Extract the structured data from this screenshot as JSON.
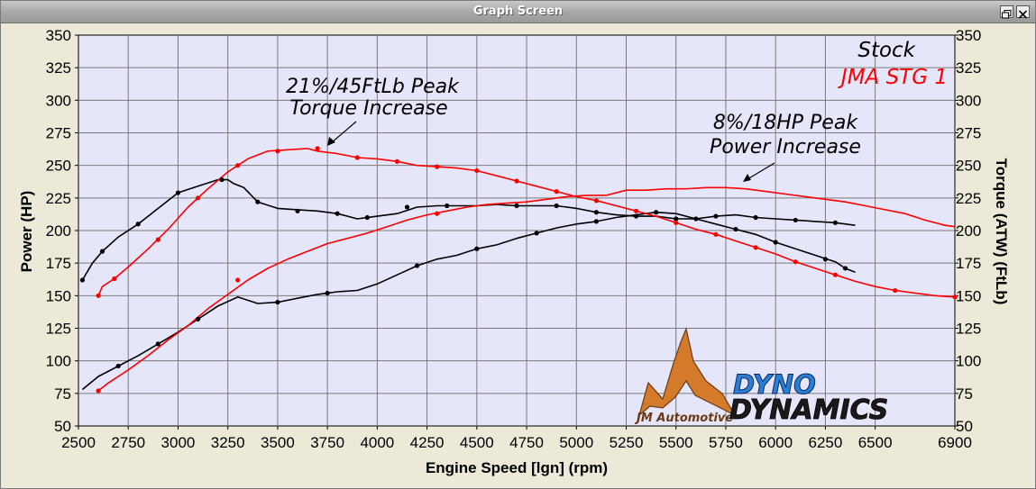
{
  "window": {
    "title": "Graph Screen"
  },
  "chart_data": {
    "type": "line",
    "x_range": [
      2500,
      6900
    ],
    "x_ticks": [
      2500,
      2750,
      3000,
      3250,
      3500,
      3750,
      4000,
      4250,
      4500,
      4750,
      5000,
      5250,
      5500,
      5750,
      6000,
      6250,
      6500,
      6900
    ],
    "ylim_left": [
      50,
      350
    ],
    "ylim_right": [
      50,
      350
    ],
    "y_ticks": [
      50,
      75,
      100,
      125,
      150,
      175,
      200,
      225,
      250,
      275,
      300,
      325,
      350
    ],
    "xlabel": "Engine Speed [lgn] (rpm)",
    "ylabel_left": "Power (HP)",
    "ylabel_right": "Torque (ATW) (FtLb)",
    "grid": true,
    "legend_position": "top-right",
    "series": [
      {
        "name": "Stock",
        "metric": "torque",
        "color": "#000000",
        "x": [
          2520,
          2570,
          2620,
          2700,
          2800,
          2900,
          3000,
          3100,
          3200,
          3250,
          3280,
          3330,
          3400,
          3500,
          3600,
          3700,
          3800,
          3900,
          4000,
          4100,
          4200,
          4300,
          4400,
          4500,
          4600,
          4700,
          4800,
          4900,
          5000,
          5100,
          5200,
          5300,
          5400,
          5500,
          5600,
          5700,
          5800,
          5900,
          6000,
          6100,
          6200,
          6300,
          6400
        ],
        "y": [
          162,
          175,
          184,
          195,
          205,
          217,
          229,
          234,
          239,
          239,
          236,
          233,
          222,
          217,
          216,
          215,
          213,
          209,
          211,
          213,
          218,
          219,
          219,
          219,
          220,
          219,
          219,
          219,
          217,
          214,
          212,
          211,
          211,
          209,
          209,
          211,
          212,
          210,
          209,
          208,
          207,
          206,
          204
        ]
      },
      {
        "name": "Stock",
        "metric": "power",
        "color": "#000000",
        "x": [
          2520,
          2600,
          2700,
          2800,
          2900,
          3000,
          3100,
          3200,
          3300,
          3400,
          3500,
          3600,
          3700,
          3800,
          3900,
          4000,
          4100,
          4200,
          4300,
          4400,
          4500,
          4600,
          4700,
          4800,
          4900,
          5000,
          5100,
          5200,
          5300,
          5400,
          5500,
          5600,
          5700,
          5800,
          5900,
          6000,
          6100,
          6200,
          6300,
          6350,
          6400
        ],
        "y": [
          78,
          88,
          96,
          104,
          113,
          122,
          132,
          142,
          149,
          144,
          145,
          148,
          151,
          153,
          154,
          159,
          166,
          173,
          178,
          181,
          186,
          189,
          194,
          198,
          202,
          205,
          207,
          210,
          212,
          214,
          213,
          209,
          205,
          201,
          197,
          191,
          186,
          181,
          176,
          171,
          168
        ]
      },
      {
        "name": "JMA STG 1",
        "metric": "torque",
        "color": "#ff0000",
        "x": [
          2600,
          2620,
          2680,
          2750,
          2850,
          2950,
          3050,
          3150,
          3250,
          3350,
          3450,
          3550,
          3650,
          3700,
          3800,
          3900,
          4000,
          4100,
          4200,
          4300,
          4400,
          4500,
          4600,
          4700,
          4800,
          4900,
          5000,
          5100,
          5200,
          5300,
          5400,
          5500,
          5600,
          5700,
          5800,
          5900,
          6000,
          6100,
          6200,
          6300,
          6400,
          6500,
          6600,
          6700,
          6800,
          6900
        ],
        "y": [
          150,
          157,
          163,
          172,
          186,
          201,
          218,
          232,
          245,
          255,
          261,
          262,
          263,
          261,
          259,
          256,
          255,
          253,
          250,
          249,
          248,
          246,
          242,
          238,
          234,
          230,
          226,
          223,
          219,
          215,
          211,
          206,
          201,
          197,
          192,
          187,
          182,
          176,
          171,
          166,
          161,
          157,
          154,
          152,
          150,
          149
        ]
      },
      {
        "name": "JMA STG 1",
        "metric": "power",
        "color": "#ff0000",
        "x": [
          2600,
          2650,
          2750,
          2850,
          2950,
          3050,
          3150,
          3250,
          3350,
          3450,
          3550,
          3650,
          3750,
          3850,
          3950,
          4050,
          4150,
          4250,
          4350,
          4450,
          4550,
          4650,
          4750,
          4850,
          4950,
          5050,
          5150,
          5250,
          5350,
          5450,
          5550,
          5650,
          5750,
          5850,
          5950,
          6050,
          6150,
          6250,
          6350,
          6450,
          6550,
          6650,
          6750,
          6850,
          6900
        ],
        "y": [
          77,
          83,
          93,
          104,
          116,
          127,
          140,
          151,
          162,
          171,
          178,
          184,
          190,
          194,
          198,
          203,
          208,
          212,
          215,
          218,
          220,
          221,
          222,
          224,
          226,
          227,
          227,
          231,
          231,
          232,
          232,
          233,
          233,
          232,
          230,
          228,
          226,
          224,
          222,
          219,
          216,
          213,
          208,
          204,
          203
        ]
      }
    ],
    "markers": {
      "stock_torque": [
        [
          2520,
          162
        ],
        [
          2620,
          184
        ],
        [
          2800,
          205
        ],
        [
          3000,
          229
        ],
        [
          3220,
          239
        ],
        [
          3400,
          222
        ],
        [
          3600,
          215
        ],
        [
          3800,
          213
        ],
        [
          3950,
          210
        ],
        [
          4150,
          218
        ],
        [
          4350,
          219
        ],
        [
          4700,
          219
        ],
        [
          4900,
          219
        ],
        [
          5100,
          214
        ],
        [
          5300,
          211
        ],
        [
          5500,
          209
        ],
        [
          5700,
          211
        ],
        [
          5900,
          210
        ],
        [
          6100,
          208
        ],
        [
          6300,
          206
        ]
      ],
      "stock_power": [
        [
          2700,
          96
        ],
        [
          2900,
          113
        ],
        [
          3100,
          132
        ],
        [
          3500,
          145
        ],
        [
          3750,
          152
        ],
        [
          4200,
          173
        ],
        [
          4500,
          186
        ],
        [
          4800,
          198
        ],
        [
          5100,
          207
        ],
        [
          5400,
          214
        ],
        [
          5600,
          209
        ],
        [
          5800,
          201
        ],
        [
          6000,
          191
        ],
        [
          6250,
          178
        ],
        [
          6350,
          171
        ]
      ],
      "jma_torque": [
        [
          2600,
          150
        ],
        [
          2680,
          163
        ],
        [
          2900,
          193
        ],
        [
          3100,
          225
        ],
        [
          3300,
          250
        ],
        [
          3500,
          261
        ],
        [
          3700,
          263
        ],
        [
          3900,
          256
        ],
        [
          4100,
          253
        ],
        [
          4300,
          249
        ],
        [
          4500,
          246
        ],
        [
          4700,
          238
        ],
        [
          4900,
          230
        ],
        [
          5100,
          223
        ],
        [
          5300,
          215
        ],
        [
          5500,
          206
        ],
        [
          5700,
          197
        ],
        [
          5900,
          187
        ],
        [
          6100,
          176
        ],
        [
          6300,
          166
        ],
        [
          6600,
          154
        ],
        [
          6900,
          149
        ]
      ],
      "jma_power": [
        [
          2600,
          77
        ],
        [
          3300,
          162
        ],
        [
          4300,
          213
        ]
      ]
    },
    "annotations": [
      {
        "lines": [
          "21%/45FtLb Peak",
          "Torque Increase"
        ],
        "target_x": 3720,
        "target_y": 262
      },
      {
        "lines": [
          "8%/18HP Peak",
          "Power Increase"
        ],
        "target_x": 5820,
        "target_y": 233
      }
    ],
    "logo": {
      "company": "JM Automotive",
      "brand_top": "DYNO",
      "brand_bottom": "DYNAMICS"
    }
  }
}
